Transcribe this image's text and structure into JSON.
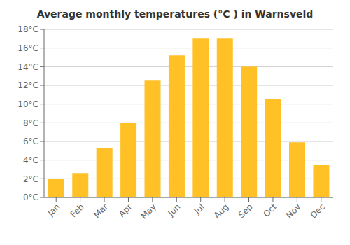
{
  "chart_data": {
    "type": "bar",
    "title": "Average monthly temperatures (°C ) in Warnsveld",
    "categories": [
      "Jan",
      "Feb",
      "Mar",
      "Apr",
      "May",
      "Jun",
      "Jul",
      "Aug",
      "Sep",
      "Oct",
      "Nov",
      "Dec"
    ],
    "values": [
      2.0,
      2.6,
      5.3,
      8.0,
      12.5,
      15.2,
      17.0,
      17.0,
      14.0,
      10.5,
      5.9,
      3.5
    ],
    "color": "#FFC125",
    "ylim": [
      0,
      18
    ],
    "yticks": [
      {
        "value": 0,
        "label": "0°C"
      },
      {
        "value": 2,
        "label": "2°C"
      },
      {
        "value": 4,
        "label": "4°C"
      },
      {
        "value": 6,
        "label": "6°C"
      },
      {
        "value": 8,
        "label": "8°C"
      },
      {
        "value": 10,
        "label": "10°C"
      },
      {
        "value": 12,
        "label": "12°C"
      },
      {
        "value": 14,
        "label": "14°C"
      },
      {
        "value": 16,
        "label": "16°C"
      },
      {
        "value": 18,
        "label": "18°C"
      }
    ],
    "grid": true
  }
}
